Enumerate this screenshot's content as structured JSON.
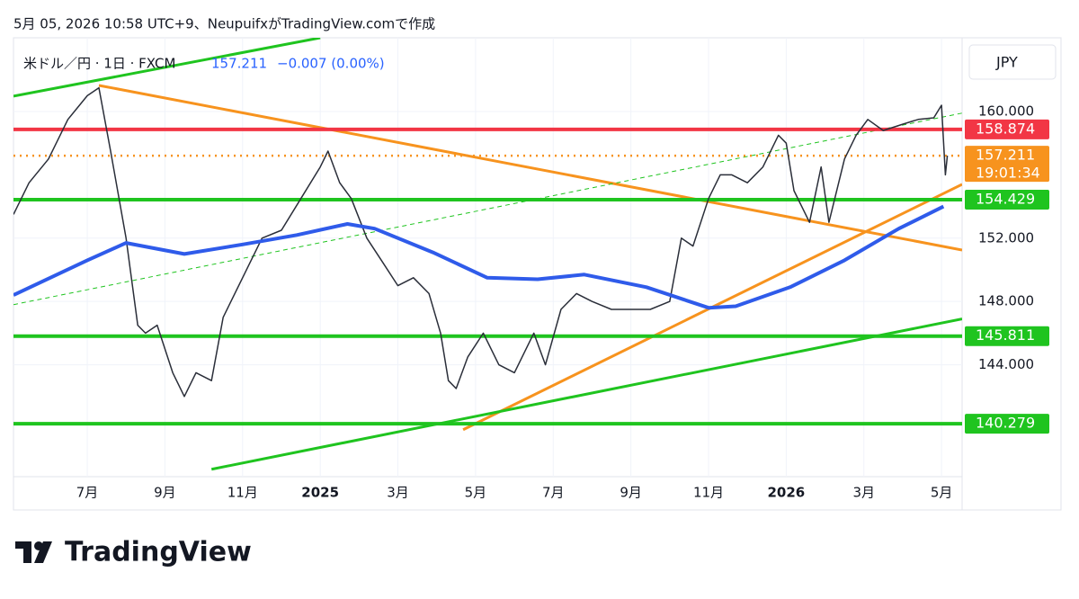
{
  "header": "5月 05, 2026 10:58 UTC+9、NeupuifxがTradingView.comで作成",
  "logo": "TradingView",
  "chart_data": {
    "type": "line",
    "symbol": "米ドル／円 · 1日 · FXCM",
    "last_price": 157.211,
    "change": "−0.007 (0.00%)",
    "currency": "JPY",
    "xlim": [
      4.1,
      28.53
    ],
    "ylim": [
      136.93,
      164.66
    ],
    "grid": true,
    "xticks": [
      {
        "value": 6,
        "label": "7月"
      },
      {
        "value": 8,
        "label": "9月"
      },
      {
        "value": 10,
        "label": "11月"
      },
      {
        "value": 12,
        "label": "2025"
      },
      {
        "value": 14,
        "label": "3月"
      },
      {
        "value": 16,
        "label": "5月"
      },
      {
        "value": 18,
        "label": "7月"
      },
      {
        "value": 20,
        "label": "9月"
      },
      {
        "value": 22,
        "label": "11月"
      },
      {
        "value": 24,
        "label": "2026"
      },
      {
        "value": 26,
        "label": "3月"
      },
      {
        "value": 28,
        "label": "5月"
      }
    ],
    "yticks": [
      {
        "value": 144,
        "label": "144.000"
      },
      {
        "value": 148,
        "label": "148.000"
      },
      {
        "value": 152,
        "label": "152.000"
      },
      {
        "value": 160,
        "label": "160.000"
      }
    ],
    "series": [
      {
        "color": "#2a2e39",
        "x": [
          4.1,
          4.5,
          5.0,
          5.5,
          6.0,
          6.3,
          6.6,
          7.0,
          7.3,
          7.5,
          7.8,
          8.2,
          8.5,
          8.8,
          9.2,
          9.5,
          10.0,
          10.5,
          11.0,
          11.5,
          12.0,
          12.2,
          12.5,
          12.8,
          13.2,
          13.6,
          14.0,
          14.4,
          14.8,
          15.1,
          15.3,
          15.5,
          15.8,
          16.2,
          16.6,
          17.0,
          17.5,
          17.8,
          18.2,
          18.6,
          19.0,
          19.5,
          20.0,
          20.5,
          21.0,
          21.3,
          21.6,
          22.0,
          22.3,
          22.6,
          23.0,
          23.4,
          23.8,
          24.0,
          24.2,
          24.6,
          24.9,
          25.1,
          25.5,
          25.8,
          26.1,
          26.5,
          27.0,
          27.4,
          27.8,
          28.0,
          28.1,
          28.15
        ],
        "values": [
          153.5,
          155.5,
          157.0,
          159.5,
          161.0,
          161.5,
          157.5,
          152.0,
          146.5,
          146.0,
          146.5,
          143.5,
          142.0,
          143.5,
          143.0,
          147.0,
          149.5,
          152.0,
          152.5,
          154.5,
          156.5,
          157.5,
          155.5,
          154.5,
          152.0,
          150.5,
          149.0,
          149.5,
          148.5,
          146.0,
          143.0,
          142.5,
          144.5,
          146.0,
          144.0,
          143.5,
          146.0,
          144.0,
          147.5,
          148.5,
          148.0,
          147.5,
          147.5,
          147.5,
          148.0,
          152.0,
          151.5,
          154.5,
          156.0,
          156.0,
          155.5,
          156.5,
          158.5,
          158.0,
          155.0,
          153.0,
          156.5,
          153.0,
          157.0,
          158.5,
          159.5,
          158.8,
          159.2,
          159.5,
          159.6,
          160.4,
          156.0,
          157.211
        ]
      },
      {
        "color": "#2f5bea",
        "x": [
          4.1,
          6.0,
          7.0,
          8.5,
          10.0,
          11.4,
          12.7,
          13.4,
          14.9,
          16.3,
          17.6,
          18.8,
          20.4,
          22.0,
          22.7,
          24.1,
          25.5,
          26.9,
          28.05
        ],
        "values": [
          148.4,
          150.6,
          151.7,
          151.0,
          151.6,
          152.2,
          152.9,
          152.6,
          151.1,
          149.5,
          149.4,
          149.7,
          148.9,
          147.6,
          147.7,
          148.9,
          150.6,
          152.6,
          154.0
        ]
      }
    ],
    "levels": [
      {
        "value": 158.874,
        "color": "#f23645"
      },
      {
        "value": 157.211,
        "color": "#f7931e",
        "dotted": true,
        "countdown": "19:01:34"
      },
      {
        "value": 154.429,
        "color": "#1fc41f"
      },
      {
        "value": 145.811,
        "color": "#1fc41f"
      },
      {
        "value": 140.279,
        "color": "#1fc41f"
      }
    ],
    "trendlines": [
      {
        "color": "#f7931e",
        "x": [
          6.3,
          28.53
        ],
        "y": [
          161.65,
          151.25
        ]
      },
      {
        "color": "#f7931e",
        "x": [
          15.68,
          28.53
        ],
        "y": [
          139.9,
          155.4
        ]
      },
      {
        "color": "#1fc41f",
        "x": [
          4.1,
          12.0
        ],
        "y": [
          160.97,
          164.66
        ]
      },
      {
        "color": "#1fc41f",
        "x": [
          9.2,
          28.53
        ],
        "y": [
          137.4,
          146.9
        ]
      },
      {
        "color": "#1fc41f",
        "x": [
          4.1,
          28.53
        ],
        "y": [
          147.8,
          159.9
        ],
        "dashed": true
      }
    ]
  }
}
